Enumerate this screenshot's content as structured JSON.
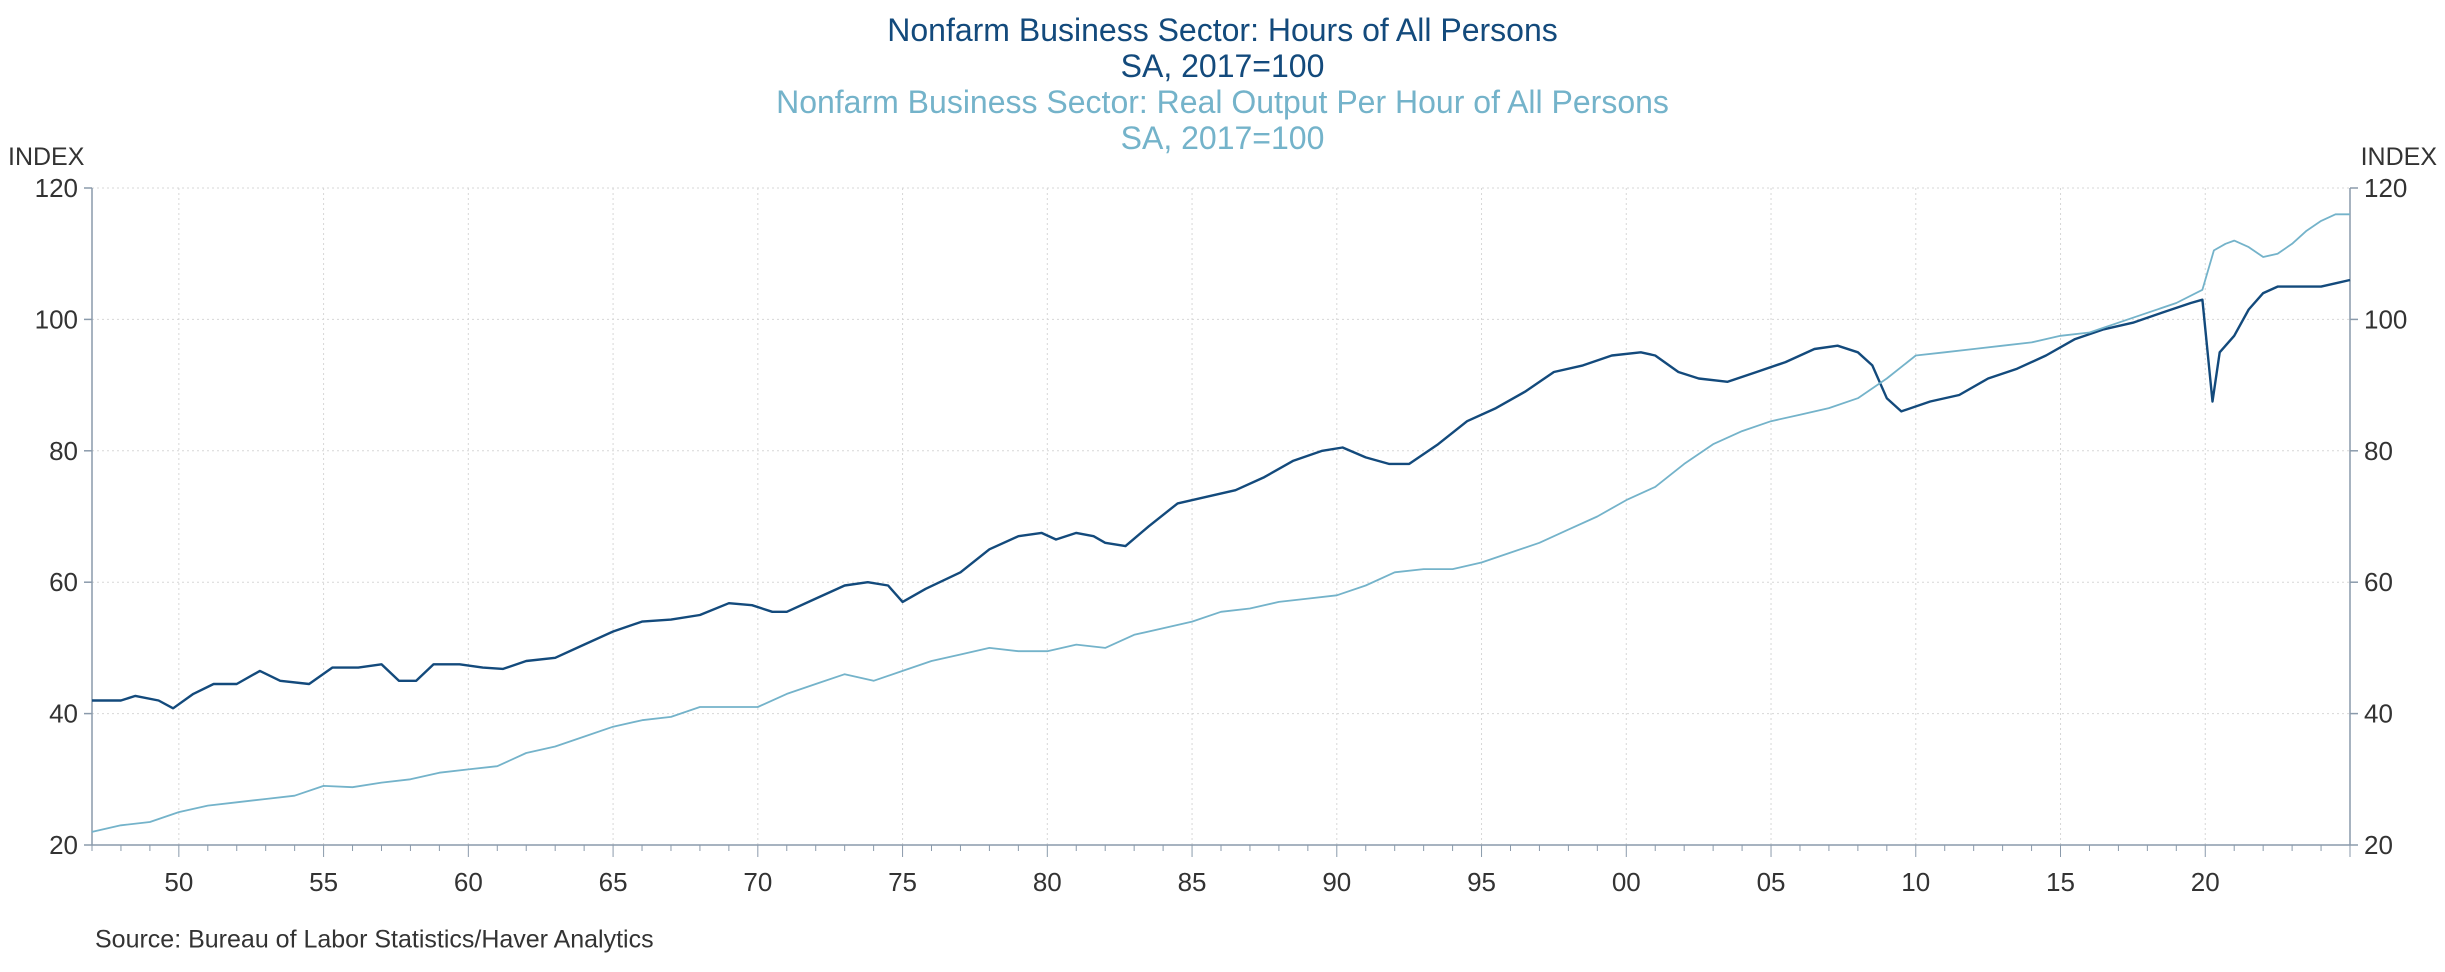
{
  "chart_data": {
    "type": "line",
    "titles": [
      "Nonfarm Business Sector: Hours of All Persons",
      "SA, 2017=100",
      "Nonfarm Business Sector: Real Output Per Hour of All Persons",
      "SA, 2017=100"
    ],
    "ylabel_left": "INDEX",
    "ylabel_right": "INDEX",
    "ylim": [
      20,
      120
    ],
    "y_ticks": [
      20,
      40,
      60,
      80,
      100,
      120
    ],
    "xlim": [
      1947,
      2025
    ],
    "x_ticks": [
      1950,
      1955,
      1960,
      1965,
      1970,
      1975,
      1980,
      1985,
      1990,
      1995,
      2000,
      2005,
      2010,
      2015,
      2020
    ],
    "x_tick_labels": [
      "50",
      "55",
      "60",
      "65",
      "70",
      "75",
      "80",
      "85",
      "90",
      "95",
      "00",
      "05",
      "10",
      "15",
      "20"
    ],
    "grid": true,
    "series": [
      {
        "name": "Nonfarm Business Sector: Hours of All Persons",
        "color": "#134a7c",
        "x": [
          1947.0,
          1948.0,
          1948.5,
          1949.3,
          1949.8,
          1950.5,
          1951.2,
          1952.0,
          1952.8,
          1953.5,
          1954.5,
          1955.3,
          1956.2,
          1957.0,
          1957.6,
          1958.2,
          1958.8,
          1959.7,
          1960.5,
          1961.2,
          1962.0,
          1963.0,
          1964.0,
          1965.0,
          1966.0,
          1967.0,
          1968.0,
          1969.0,
          1969.8,
          1970.5,
          1971.0,
          1972.0,
          1973.0,
          1973.8,
          1974.5,
          1975.0,
          1975.8,
          1977.0,
          1978.0,
          1979.0,
          1979.8,
          1980.3,
          1981.0,
          1981.6,
          1982.0,
          1982.7,
          1983.5,
          1984.5,
          1985.5,
          1986.5,
          1987.5,
          1988.5,
          1989.5,
          1990.2,
          1991.0,
          1991.8,
          1992.5,
          1993.5,
          1994.5,
          1995.5,
          1996.5,
          1997.5,
          1998.5,
          1999.5,
          2000.5,
          2001.0,
          2001.8,
          2002.5,
          2003.5,
          2004.5,
          2005.5,
          2006.5,
          2007.3,
          2008.0,
          2008.5,
          2009.0,
          2009.5,
          2010.5,
          2011.5,
          2012.5,
          2013.5,
          2014.5,
          2015.5,
          2016.5,
          2017.5,
          2018.5,
          2019.5,
          2019.9,
          2020.25,
          2020.5,
          2021.0,
          2021.5,
          2022.0,
          2022.5,
          2023.0,
          2023.5,
          2024.0,
          2024.5,
          2025.0
        ],
        "values": [
          42.0,
          42.0,
          42.7,
          42.0,
          40.8,
          43.0,
          44.5,
          44.5,
          46.5,
          45.0,
          44.5,
          47.0,
          47.0,
          47.5,
          45.0,
          45.0,
          47.5,
          47.5,
          47.0,
          46.8,
          48.0,
          48.5,
          50.5,
          52.5,
          54.0,
          54.3,
          55.0,
          56.8,
          56.5,
          55.5,
          55.5,
          57.5,
          59.5,
          60.0,
          59.5,
          57.0,
          59.0,
          61.5,
          65.0,
          67.0,
          67.5,
          66.5,
          67.5,
          67.0,
          66.0,
          65.5,
          68.5,
          72.0,
          73.0,
          74.0,
          76.0,
          78.5,
          80.0,
          80.5,
          79.0,
          78.0,
          78.0,
          81.0,
          84.5,
          86.5,
          89.0,
          92.0,
          93.0,
          94.5,
          95.0,
          94.5,
          92.0,
          91.0,
          90.5,
          92.0,
          93.5,
          95.5,
          96.0,
          95.0,
          93.0,
          88.0,
          86.0,
          87.5,
          88.5,
          91.0,
          92.5,
          94.5,
          97.0,
          98.5,
          99.5,
          101.0,
          102.5,
          103.0,
          87.5,
          95.0,
          97.5,
          101.5,
          104.0,
          105.0,
          105.0,
          105.0,
          105.0,
          105.5,
          106.0
        ]
      },
      {
        "name": "Nonfarm Business Sector: Real Output Per Hour of All Persons",
        "color": "#74b3ca",
        "x": [
          1947.0,
          1948.0,
          1949.0,
          1950.0,
          1951.0,
          1952.0,
          1953.0,
          1954.0,
          1955.0,
          1956.0,
          1957.0,
          1958.0,
          1959.0,
          1960.0,
          1961.0,
          1962.0,
          1963.0,
          1964.0,
          1965.0,
          1966.0,
          1967.0,
          1968.0,
          1969.0,
          1970.0,
          1971.0,
          1972.0,
          1973.0,
          1974.0,
          1975.0,
          1976.0,
          1977.0,
          1978.0,
          1979.0,
          1980.0,
          1981.0,
          1982.0,
          1983.0,
          1984.0,
          1985.0,
          1986.0,
          1987.0,
          1988.0,
          1989.0,
          1990.0,
          1991.0,
          1992.0,
          1993.0,
          1994.0,
          1995.0,
          1996.0,
          1997.0,
          1998.0,
          1999.0,
          2000.0,
          2001.0,
          2002.0,
          2003.0,
          2004.0,
          2005.0,
          2006.0,
          2007.0,
          2008.0,
          2009.0,
          2010.0,
          2011.0,
          2012.0,
          2013.0,
          2014.0,
          2015.0,
          2016.0,
          2017.0,
          2018.0,
          2019.0,
          2019.9,
          2020.3,
          2020.7,
          2021.0,
          2021.5,
          2022.0,
          2022.5,
          2023.0,
          2023.5,
          2024.0,
          2024.5,
          2025.0
        ],
        "values": [
          22.0,
          23.0,
          23.5,
          25.0,
          26.0,
          26.5,
          27.0,
          27.5,
          29.0,
          28.8,
          29.5,
          30.0,
          31.0,
          31.5,
          32.0,
          34.0,
          35.0,
          36.5,
          38.0,
          39.0,
          39.5,
          41.0,
          41.0,
          41.0,
          43.0,
          44.5,
          46.0,
          45.0,
          46.5,
          48.0,
          49.0,
          50.0,
          49.5,
          49.5,
          50.5,
          50.0,
          52.0,
          53.0,
          54.0,
          55.5,
          56.0,
          57.0,
          57.5,
          58.0,
          59.5,
          61.5,
          62.0,
          62.0,
          63.0,
          64.5,
          66.0,
          68.0,
          70.0,
          72.5,
          74.5,
          78.0,
          81.0,
          83.0,
          84.5,
          85.5,
          86.5,
          88.0,
          91.0,
          94.5,
          95.0,
          95.5,
          96.0,
          96.5,
          97.5,
          98.0,
          99.5,
          101.0,
          102.5,
          104.5,
          110.5,
          111.5,
          112.0,
          111.0,
          109.5,
          110.0,
          111.5,
          113.5,
          115.0,
          116.0,
          116.0
        ]
      }
    ]
  },
  "source": "Source:  Bureau of Labor Statistics/Haver Analytics"
}
